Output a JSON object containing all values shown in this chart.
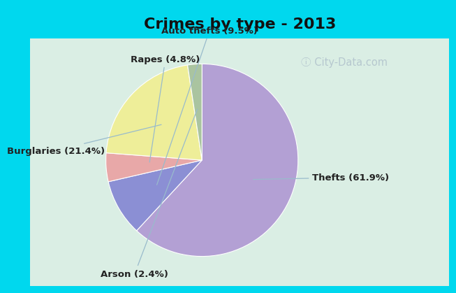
{
  "title": "Crimes by type - 2013",
  "slices": [
    {
      "label": "Thefts (61.9%)",
      "value": 61.9,
      "color": "#b3a0d4"
    },
    {
      "label": "Auto thefts (9.5%)",
      "value": 9.5,
      "color": "#8b8fd4"
    },
    {
      "label": "Rapes (4.8%)",
      "value": 4.8,
      "color": "#e8a8a8"
    },
    {
      "label": "Burglaries (21.4%)",
      "value": 21.4,
      "color": "#eeee99"
    },
    {
      "label": "Arson (2.4%)",
      "value": 2.4,
      "color": "#aac4a0"
    }
  ],
  "background_top": "#00d8ee",
  "background_main_tl": "#c8e8d8",
  "background_main_br": "#e8f4e8",
  "title_fontsize": 16,
  "label_fontsize": 9.5,
  "watermark": "ⓘ City-Data.com",
  "startangle": 90
}
